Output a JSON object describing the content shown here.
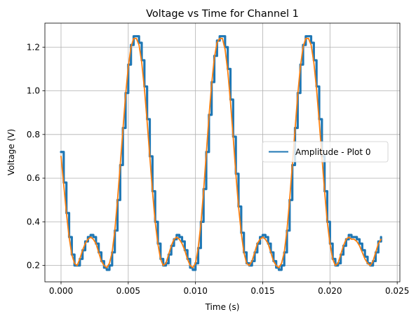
{
  "chart_data": {
    "type": "line",
    "title": "Voltage vs Time for Channel 1",
    "xlabel": "Time (s)",
    "ylabel": "Voltage (V)",
    "xlim": [
      -0.0012,
      0.0252
    ],
    "ylim": [
      0.125,
      1.31
    ],
    "x_ticks": [
      0.0,
      0.005,
      0.01,
      0.015,
      0.02,
      0.025
    ],
    "x_tick_labels": [
      "0.000",
      "0.005",
      "0.010",
      "0.015",
      "0.020",
      "0.025"
    ],
    "y_ticks": [
      0.2,
      0.4,
      0.6,
      0.8,
      1.0,
      1.2
    ],
    "y_tick_labels": [
      "0.2",
      "0.4",
      "0.6",
      "0.8",
      "1.0",
      "1.2"
    ],
    "grid": true,
    "legend": {
      "position": "center-right",
      "entries": [
        "Amplitude - Plot 0"
      ]
    },
    "series": [
      {
        "name": "Amplitude - Plot 0",
        "color": "#1f77b4",
        "style": "stepped",
        "x": [
          0.0,
          0.0002,
          0.0004,
          0.0006,
          0.0008,
          0.001,
          0.0012,
          0.0014,
          0.0016,
          0.0018,
          0.002,
          0.0022,
          0.0024,
          0.0026,
          0.0028,
          0.003,
          0.0032,
          0.0034,
          0.0036,
          0.0038,
          0.004,
          0.0042,
          0.0044,
          0.0046,
          0.0048,
          0.005,
          0.0052,
          0.0054,
          0.0056,
          0.0058,
          0.006,
          0.0062,
          0.0064,
          0.0066,
          0.0068,
          0.007,
          0.0072,
          0.0074,
          0.0076,
          0.0078,
          0.008,
          0.0082,
          0.0084,
          0.0086,
          0.0088,
          0.009,
          0.0092,
          0.0094,
          0.0096,
          0.0098,
          0.01,
          0.0102,
          0.0104,
          0.0106,
          0.0108,
          0.011,
          0.0112,
          0.0114,
          0.0116,
          0.0118,
          0.012,
          0.0122,
          0.0124,
          0.0126,
          0.0128,
          0.013,
          0.0132,
          0.0134,
          0.0136,
          0.0138,
          0.014,
          0.0142,
          0.0144,
          0.0146,
          0.0148,
          0.015,
          0.0152,
          0.0154,
          0.0156,
          0.0158,
          0.016,
          0.0162,
          0.0164,
          0.0166,
          0.0168,
          0.017,
          0.0172,
          0.0174,
          0.0176,
          0.0178,
          0.018,
          0.0182,
          0.0184,
          0.0186,
          0.0188,
          0.019,
          0.0192,
          0.0194,
          0.0196,
          0.0198,
          0.02,
          0.0202,
          0.0204,
          0.0206,
          0.0208,
          0.021,
          0.0212,
          0.0214,
          0.0216,
          0.0218,
          0.022,
          0.0222,
          0.0224,
          0.0226,
          0.0228,
          0.023,
          0.0232,
          0.0234,
          0.0236,
          0.0238
        ],
        "y": [
          0.72,
          0.58,
          0.44,
          0.33,
          0.25,
          0.2,
          0.2,
          0.23,
          0.27,
          0.31,
          0.33,
          0.34,
          0.33,
          0.3,
          0.26,
          0.22,
          0.19,
          0.18,
          0.2,
          0.26,
          0.36,
          0.5,
          0.66,
          0.83,
          0.99,
          1.12,
          1.21,
          1.25,
          1.25,
          1.22,
          1.14,
          1.02,
          0.87,
          0.7,
          0.54,
          0.4,
          0.3,
          0.23,
          0.2,
          0.21,
          0.25,
          0.29,
          0.32,
          0.34,
          0.33,
          0.31,
          0.27,
          0.23,
          0.19,
          0.18,
          0.21,
          0.28,
          0.4,
          0.55,
          0.72,
          0.89,
          1.04,
          1.16,
          1.23,
          1.25,
          1.25,
          1.2,
          1.1,
          0.96,
          0.79,
          0.62,
          0.47,
          0.35,
          0.26,
          0.21,
          0.2,
          0.22,
          0.26,
          0.3,
          0.33,
          0.34,
          0.33,
          0.3,
          0.26,
          0.22,
          0.19,
          0.18,
          0.2,
          0.26,
          0.36,
          0.5,
          0.66,
          0.83,
          0.99,
          1.12,
          1.21,
          1.25,
          1.25,
          1.22,
          1.14,
          1.02,
          0.87,
          0.7,
          0.54,
          0.4,
          0.3,
          0.23,
          0.2,
          0.21,
          0.25,
          0.29,
          0.32,
          0.34,
          0.33,
          0.33,
          0.32,
          0.3,
          0.27,
          0.24,
          0.21,
          0.2,
          0.22,
          0.26,
          0.31,
          0.33
        ]
      },
      {
        "name": "",
        "color": "#ff7f0e",
        "style": "smooth",
        "x": [
          0.0,
          0.0002,
          0.0004,
          0.0006,
          0.0008,
          0.001,
          0.0012,
          0.0014,
          0.0016,
          0.0018,
          0.002,
          0.0022,
          0.0024,
          0.0026,
          0.0028,
          0.003,
          0.0032,
          0.0034,
          0.0036,
          0.0038,
          0.004,
          0.0042,
          0.0044,
          0.0046,
          0.0048,
          0.005,
          0.0052,
          0.0054,
          0.0056,
          0.0058,
          0.006,
          0.0062,
          0.0064,
          0.0066,
          0.0068,
          0.007,
          0.0072,
          0.0074,
          0.0076,
          0.0078,
          0.008,
          0.0082,
          0.0084,
          0.0086,
          0.0088,
          0.009,
          0.0092,
          0.0094,
          0.0096,
          0.0098,
          0.01,
          0.0102,
          0.0104,
          0.0106,
          0.0108,
          0.011,
          0.0112,
          0.0114,
          0.0116,
          0.0118,
          0.012,
          0.0122,
          0.0124,
          0.0126,
          0.0128,
          0.013,
          0.0132,
          0.0134,
          0.0136,
          0.0138,
          0.014,
          0.0142,
          0.0144,
          0.0146,
          0.0148,
          0.015,
          0.0152,
          0.0154,
          0.0156,
          0.0158,
          0.016,
          0.0162,
          0.0164,
          0.0166,
          0.0168,
          0.017,
          0.0172,
          0.0174,
          0.0176,
          0.0178,
          0.018,
          0.0182,
          0.0184,
          0.0186,
          0.0188,
          0.019,
          0.0192,
          0.0194,
          0.0196,
          0.0198,
          0.02,
          0.0202,
          0.0204,
          0.0206,
          0.0208,
          0.021,
          0.0212,
          0.0214,
          0.0216,
          0.0218,
          0.022,
          0.0222,
          0.0224,
          0.0226,
          0.0228,
          0.023,
          0.0232,
          0.0234,
          0.0236,
          0.0238
        ],
        "y": [
          0.7,
          0.57,
          0.44,
          0.33,
          0.25,
          0.21,
          0.2,
          0.23,
          0.27,
          0.3,
          0.32,
          0.33,
          0.32,
          0.3,
          0.26,
          0.22,
          0.2,
          0.19,
          0.21,
          0.26,
          0.36,
          0.5,
          0.66,
          0.82,
          0.98,
          1.11,
          1.2,
          1.24,
          1.24,
          1.21,
          1.13,
          1.01,
          0.86,
          0.7,
          0.54,
          0.4,
          0.3,
          0.23,
          0.2,
          0.21,
          0.25,
          0.29,
          0.32,
          0.33,
          0.32,
          0.3,
          0.27,
          0.23,
          0.2,
          0.19,
          0.21,
          0.28,
          0.39,
          0.54,
          0.71,
          0.88,
          1.03,
          1.15,
          1.22,
          1.24,
          1.24,
          1.19,
          1.09,
          0.95,
          0.79,
          0.62,
          0.47,
          0.35,
          0.26,
          0.21,
          0.2,
          0.22,
          0.26,
          0.3,
          0.32,
          0.33,
          0.32,
          0.3,
          0.26,
          0.22,
          0.2,
          0.19,
          0.21,
          0.26,
          0.36,
          0.5,
          0.66,
          0.82,
          0.98,
          1.11,
          1.2,
          1.24,
          1.24,
          1.21,
          1.13,
          1.01,
          0.86,
          0.7,
          0.54,
          0.4,
          0.3,
          0.23,
          0.2,
          0.21,
          0.25,
          0.29,
          0.32,
          0.33,
          0.32,
          0.32,
          0.31,
          0.29,
          0.26,
          0.23,
          0.21,
          0.2,
          0.22,
          0.26,
          0.3,
          0.32
        ]
      }
    ]
  }
}
